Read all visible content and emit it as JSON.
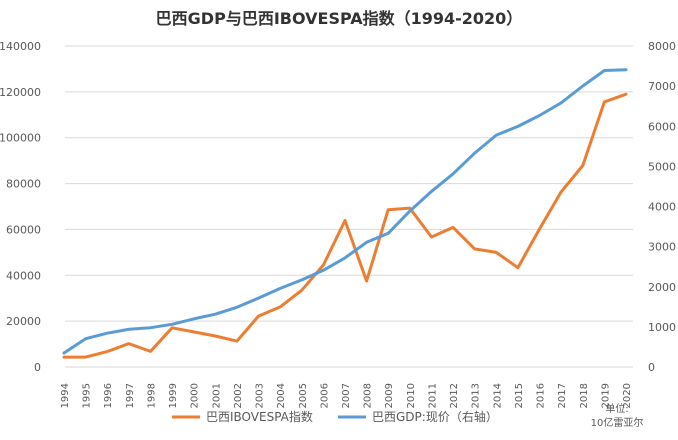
{
  "chart_data": {
    "type": "line",
    "title": "巴西GDP与巴西IBOVESPA指数（1994-2020）",
    "x": [
      1994,
      1995,
      1996,
      1997,
      1998,
      1999,
      2000,
      2001,
      2002,
      2003,
      2004,
      2005,
      2006,
      2007,
      2008,
      2009,
      2010,
      2011,
      2012,
      2013,
      2014,
      2015,
      2016,
      2017,
      2018,
      2019,
      2020
    ],
    "x_labels": [
      "1994",
      "1995",
      "1996",
      "1997",
      "1998",
      "1999",
      "2000",
      "2001",
      "2002",
      "2003",
      "2004",
      "2005",
      "2006",
      "2007",
      "2008",
      "2009",
      "2010",
      "2011",
      "2012",
      "2013",
      "2014",
      "2015",
      "2016",
      "2017",
      "2018",
      "2019",
      "2020"
    ],
    "left_axis": {
      "min": 0,
      "max": 140000,
      "ticks": [
        0,
        20000,
        40000,
        60000,
        80000,
        100000,
        120000,
        140000
      ],
      "tick_labels": [
        "0",
        "20000",
        "40000",
        "60000",
        "80000",
        "100000",
        "120000",
        "140000"
      ]
    },
    "right_axis": {
      "min": 0,
      "max": 8000,
      "ticks": [
        0,
        1000,
        2000,
        3000,
        4000,
        5000,
        6000,
        7000,
        8000
      ],
      "tick_labels": [
        "0",
        "1000",
        "2000",
        "3000",
        "4000",
        "5000",
        "6000",
        "7000",
        "8000"
      ]
    },
    "unit_label_line1": "单位:",
    "unit_label_line2": "10亿雷亚尔",
    "grid": true,
    "legend_position": "bottom",
    "series": [
      {
        "name": "巴西IBOVESPA指数",
        "axis": "left",
        "color": "#ED7D31",
        "values": [
          4300,
          4300,
          6700,
          10200,
          6800,
          17100,
          15300,
          13500,
          11300,
          22200,
          26200,
          33500,
          44500,
          63900,
          37500,
          68600,
          69300,
          56700,
          60900,
          51500,
          50000,
          43300,
          60200,
          76400,
          87900,
          115600,
          119000
        ]
      },
      {
        "name": "巴西GDP:现价（右轴）",
        "axis": "right",
        "color": "#5B9BD5",
        "values": [
          349,
          705,
          843,
          939,
          979,
          1065,
          1199,
          1315,
          1488,
          1718,
          1958,
          2171,
          2409,
          2720,
          3109,
          3333,
          3886,
          4376,
          4815,
          5332,
          5779,
          5996,
          6269,
          6585,
          7004,
          7389,
          7410
        ]
      }
    ]
  }
}
